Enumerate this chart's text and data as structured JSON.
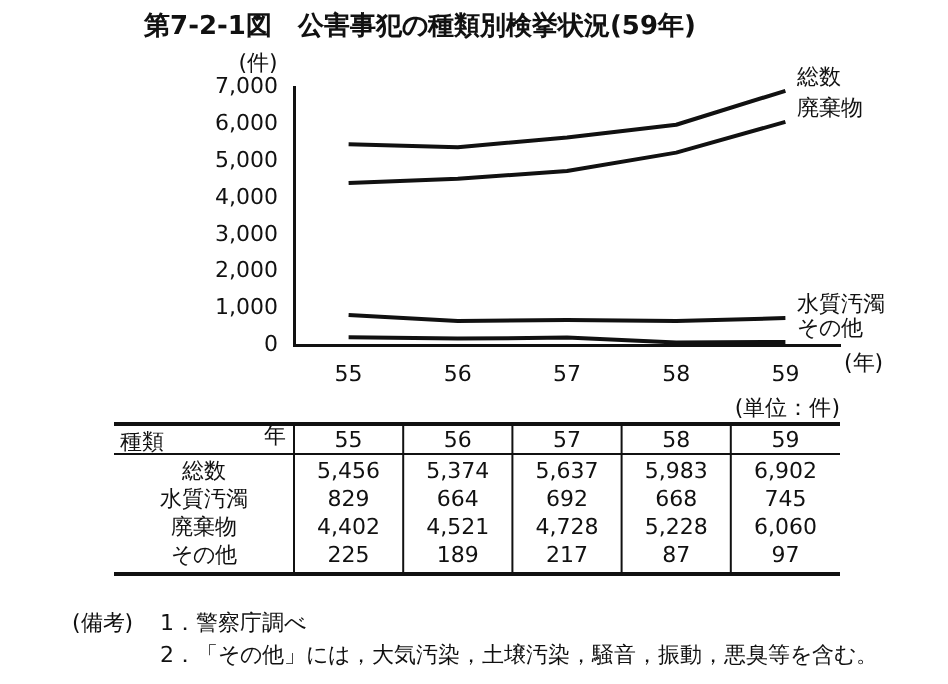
{
  "chart_data": {
    "type": "line",
    "title": "第7-2-1図　公害事犯の種類別検挙状況(59年)",
    "ylabel": "(件)",
    "xlabel": "(年)",
    "categories": [
      "55",
      "56",
      "57",
      "58",
      "59"
    ],
    "series": [
      {
        "name": "総数",
        "color": "#111111",
        "values": [
          5456,
          5374,
          5637,
          5983,
          6902
        ],
        "value_labels": [
          "5,456",
          "5,374",
          "5,637",
          "5,983",
          "6,902"
        ]
      },
      {
        "name": "水質汚濁",
        "color": "#111111",
        "values": [
          829,
          664,
          692,
          668,
          745
        ],
        "value_labels": [
          "829",
          "664",
          "692",
          "668",
          "745"
        ]
      },
      {
        "name": "廃棄物",
        "color": "#111111",
        "values": [
          4402,
          4521,
          4728,
          5228,
          6060
        ],
        "value_labels": [
          "4,402",
          "4,521",
          "4,728",
          "5,228",
          "6,060"
        ]
      },
      {
        "name": "その他",
        "color": "#111111",
        "values": [
          225,
          189,
          217,
          87,
          97
        ],
        "value_labels": [
          "225",
          "189",
          "217",
          "87",
          "97"
        ]
      }
    ],
    "ylim": [
      0,
      7000
    ],
    "yticks": [
      {
        "value": 0,
        "label": "0"
      },
      {
        "value": 1000,
        "label": "1,000"
      },
      {
        "value": 2000,
        "label": "2,000"
      },
      {
        "value": 3000,
        "label": "3,000"
      },
      {
        "value": 4000,
        "label": "4,000"
      },
      {
        "value": 5000,
        "label": "5,000"
      },
      {
        "value": 6000,
        "label": "6,000"
      },
      {
        "value": 7000,
        "label": "7,000"
      }
    ],
    "marker": "none",
    "line_style": "solid",
    "legend": "right",
    "annotations": [
      "(単位：件)",
      "種類",
      "年",
      "(備考)",
      "1．警察庁調べ",
      "2．「その他」には，大気汚染，土壌汚染，騒音，振動，悪臭等を含む。"
    ]
  }
}
